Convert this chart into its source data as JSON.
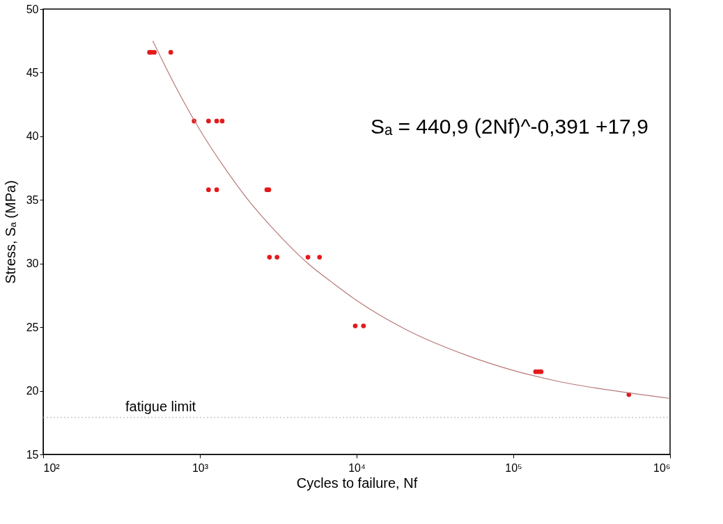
{
  "chart_data": {
    "type": "scatter",
    "xlabel": "Cycles to failure, Nf",
    "ylabel": "Stress, Sₐ (MPa)",
    "annotations": [
      "Sₐ = 440,9 (2Nf)^-0,391 +17,9"
    ],
    "log": "x",
    "grid": false,
    "marker": "circle",
    "xlim": [
      100,
      1000000
    ],
    "xticks": [
      {
        "value": 100,
        "label": "10²"
      },
      {
        "value": 1000,
        "label": "10³"
      },
      {
        "value": 10000,
        "label": "10⁴"
      },
      {
        "value": 100000,
        "label": "10⁵"
      },
      {
        "value": 1000000,
        "label": "10⁶"
      }
    ],
    "ylim": [
      15,
      50
    ],
    "yticks": [
      15,
      20,
      25,
      30,
      35,
      40,
      45,
      50
    ],
    "series": [
      {
        "color": "#e31a1c",
        "x": [
          477,
          491,
          512,
          652,
          918,
          1135,
          1280,
          1387,
          1135,
          1280,
          2672,
          2754,
          2780,
          3105,
          4890,
          5800,
          9800,
          11060,
          138700,
          144500,
          150400,
          546000
        ],
        "values": [
          46.6,
          46.6,
          46.6,
          46.6,
          41.2,
          41.2,
          41.2,
          41.2,
          35.8,
          35.8,
          35.8,
          35.8,
          30.5,
          30.5,
          30.5,
          30.5,
          25.1,
          25.1,
          21.5,
          21.5,
          21.5,
          19.7
        ]
      },
      {
        "type": "line",
        "color": "#b87878",
        "line_style": "solid",
        "marker": "none",
        "x": [
          500,
          700,
          1000,
          1500,
          2000,
          3000,
          5000,
          7000,
          10000,
          20000,
          50000,
          100000,
          200000,
          500000,
          1000000
        ],
        "values": [
          47.5,
          43.9,
          40.5,
          37.2,
          35.1,
          32.6,
          29.9,
          28.5,
          27.1,
          24.9,
          22.8,
          21.6,
          20.7,
          19.9,
          19.4
        ]
      }
    ],
    "ref_lines": [
      {
        "axis": "y",
        "value": 17.9,
        "label": "fatigue limit",
        "color": "#bbbbbb",
        "line_style": "dotted"
      }
    ]
  }
}
